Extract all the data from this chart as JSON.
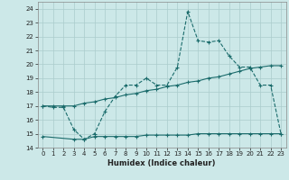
{
  "xlabel": "Humidex (Indice chaleur)",
  "bg_color": "#cce8e8",
  "grid_color": "#aacccc",
  "line_color": "#1a6b6b",
  "xlim": [
    -0.5,
    23.5
  ],
  "ylim": [
    14,
    24.5
  ],
  "xticks": [
    0,
    1,
    2,
    3,
    4,
    5,
    6,
    7,
    8,
    9,
    10,
    11,
    12,
    13,
    14,
    15,
    16,
    17,
    18,
    19,
    20,
    21,
    22,
    23
  ],
  "yticks": [
    14,
    15,
    16,
    17,
    18,
    19,
    20,
    21,
    22,
    23,
    24
  ],
  "line1_x": [
    0,
    1,
    2,
    3,
    4,
    5,
    6,
    7,
    8,
    9,
    10,
    11,
    12,
    13,
    14,
    15,
    16,
    17,
    18,
    19,
    20,
    21,
    22,
    23
  ],
  "line1_y": [
    17.0,
    16.9,
    16.9,
    15.3,
    14.6,
    15.0,
    16.6,
    17.7,
    18.5,
    18.5,
    19.0,
    18.5,
    18.5,
    19.8,
    23.8,
    21.7,
    21.6,
    21.7,
    20.6,
    19.8,
    19.8,
    18.5,
    18.5,
    15.0
  ],
  "line2_x": [
    0,
    1,
    2,
    3,
    4,
    5,
    6,
    7,
    8,
    9,
    10,
    11,
    12,
    13,
    14,
    15,
    16,
    17,
    18,
    19,
    20,
    21,
    22,
    23
  ],
  "line2_y": [
    17.0,
    17.0,
    17.0,
    17.0,
    17.2,
    17.3,
    17.5,
    17.6,
    17.8,
    17.9,
    18.1,
    18.2,
    18.4,
    18.5,
    18.7,
    18.8,
    19.0,
    19.1,
    19.3,
    19.5,
    19.7,
    19.8,
    19.9,
    19.9
  ],
  "line3_x": [
    0,
    3,
    4,
    5,
    6,
    7,
    8,
    9,
    10,
    11,
    12,
    13,
    14,
    15,
    16,
    17,
    18,
    19,
    20,
    21,
    22,
    23
  ],
  "line3_y": [
    14.8,
    14.6,
    14.6,
    14.8,
    14.8,
    14.8,
    14.8,
    14.8,
    14.9,
    14.9,
    14.9,
    14.9,
    14.9,
    15.0,
    15.0,
    15.0,
    15.0,
    15.0,
    15.0,
    15.0,
    15.0,
    15.0
  ]
}
